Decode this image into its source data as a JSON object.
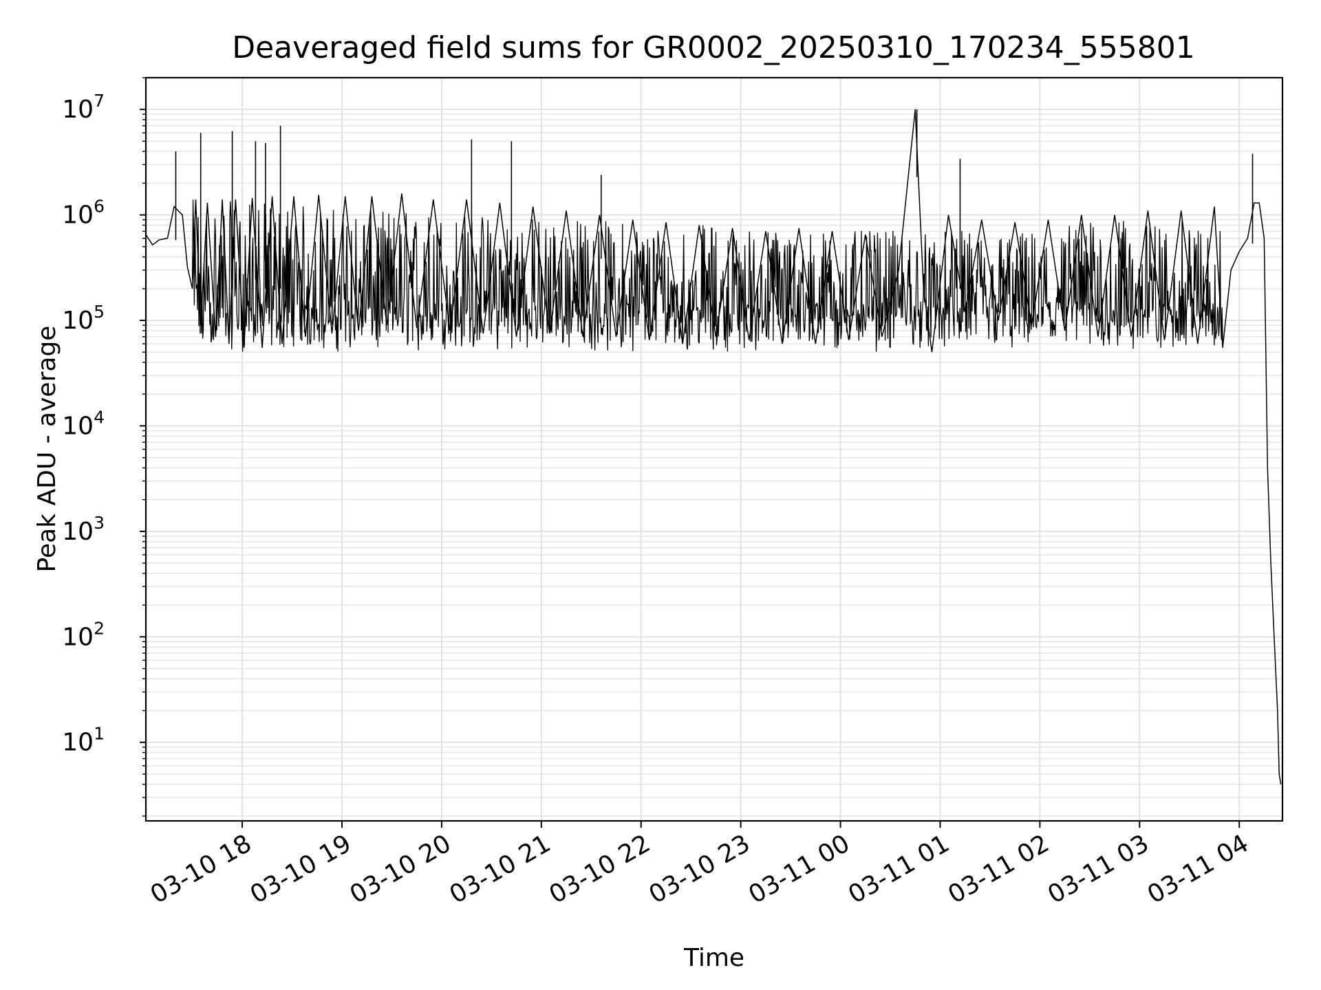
{
  "chart_data": {
    "type": "line",
    "title": "Deaveraged field sums for GR0002_20250310_170234_555801",
    "xlabel": "Time",
    "ylabel": "Peak ADU - average",
    "yscale": "log",
    "ylim": [
      1.8,
      20000000
    ],
    "xlim": [
      "2025-03-10 17:02",
      "2025-03-11 04:26"
    ],
    "grid": true,
    "x_ticks": [
      "03-10 18",
      "03-10 19",
      "03-10 20",
      "03-10 21",
      "03-10 22",
      "03-10 23",
      "03-11 00",
      "03-11 01",
      "03-11 02",
      "03-11 03",
      "03-11 04"
    ],
    "y_ticks": [
      {
        "base": "10",
        "exp": "1",
        "value": 10
      },
      {
        "base": "10",
        "exp": "2",
        "value": 100
      },
      {
        "base": "10",
        "exp": "3",
        "value": 1000
      },
      {
        "base": "10",
        "exp": "4",
        "value": 10000
      },
      {
        "base": "10",
        "exp": "5",
        "value": 100000
      },
      {
        "base": "10",
        "exp": "6",
        "value": 1000000
      },
      {
        "base": "10",
        "exp": "7",
        "value": 10000000
      }
    ],
    "series": [
      {
        "color": "#000000",
        "x": [
          "2025-03-10 17:02",
          "2025-03-10 17:06",
          "2025-03-10 17:10",
          "2025-03-10 17:15",
          "2025-03-10 17:19",
          "2025-03-10 17:24",
          "2025-03-10 17:27",
          "2025-03-10 17:30",
          "2025-03-10 17:32",
          "2025-03-10 17:35",
          "2025-03-10 17:39",
          "2025-03-10 17:44",
          "2025-03-10 17:48",
          "2025-03-10 17:52",
          "2025-03-10 17:56",
          "2025-03-10 18:01",
          "2025-03-10 18:06",
          "2025-03-10 18:12",
          "2025-03-10 18:18",
          "2025-03-10 18:24",
          "2025-03-10 18:31",
          "2025-03-10 18:38",
          "2025-03-10 18:46",
          "2025-03-10 18:54",
          "2025-03-10 19:02",
          "2025-03-10 19:10",
          "2025-03-10 19:18",
          "2025-03-10 19:27",
          "2025-03-10 19:36",
          "2025-03-10 19:45",
          "2025-03-10 19:55",
          "2025-03-10 20:05",
          "2025-03-10 20:15",
          "2025-03-10 20:25",
          "2025-03-10 20:35",
          "2025-03-10 20:45",
          "2025-03-10 20:55",
          "2025-03-10 21:05",
          "2025-03-10 21:15",
          "2025-03-10 21:25",
          "2025-03-10 21:35",
          "2025-03-10 21:45",
          "2025-03-10 21:55",
          "2025-03-10 22:05",
          "2025-03-10 22:15",
          "2025-03-10 22:25",
          "2025-03-10 22:35",
          "2025-03-10 22:45",
          "2025-03-10 22:55",
          "2025-03-10 23:05",
          "2025-03-10 23:15",
          "2025-03-10 23:25",
          "2025-03-10 23:35",
          "2025-03-10 23:45",
          "2025-03-10 23:55",
          "2025-03-11 00:05",
          "2025-03-11 00:15",
          "2025-03-11 00:25",
          "2025-03-11 00:35",
          "2025-03-11 00:45",
          "2025-03-11 00:50",
          "2025-03-11 00:55",
          "2025-03-11 01:05",
          "2025-03-11 01:15",
          "2025-03-11 01:25",
          "2025-03-11 01:35",
          "2025-03-11 01:45",
          "2025-03-11 01:55",
          "2025-03-11 02:05",
          "2025-03-11 02:15",
          "2025-03-11 02:25",
          "2025-03-11 02:35",
          "2025-03-11 02:45",
          "2025-03-11 02:55",
          "2025-03-11 03:05",
          "2025-03-11 03:15",
          "2025-03-11 03:25",
          "2025-03-11 03:35",
          "2025-03-11 03:45",
          "2025-03-11 03:50",
          "2025-03-11 03:55",
          "2025-03-11 04:00",
          "2025-03-11 04:05",
          "2025-03-11 04:09",
          "2025-03-11 04:12",
          "2025-03-11 04:15",
          "2025-03-11 04:17",
          "2025-03-11 04:19",
          "2025-03-11 04:21",
          "2025-03-11 04:23",
          "2025-03-11 04:24",
          "2025-03-11 04:25"
        ],
        "y": [
          650000,
          520000,
          580000,
          600000,
          1200000,
          1000000,
          320000,
          200000,
          1400000,
          90000,
          1300000,
          70000,
          1400000,
          60000,
          1400000,
          55000,
          1450000,
          55000,
          1500000,
          60000,
          1500000,
          70000,
          1550000,
          75000,
          1500000,
          80000,
          1500000,
          90000,
          1600000,
          85000,
          1400000,
          80000,
          1400000,
          75000,
          1300000,
          70000,
          1200000,
          75000,
          1100000,
          70000,
          1000000,
          70000,
          900000,
          65000,
          850000,
          60000,
          800000,
          70000,
          750000,
          65000,
          700000,
          60000,
          750000,
          60000,
          700000,
          65000,
          650000,
          70000,
          300000,
          10000000,
          200000,
          50000,
          1000000,
          120000,
          900000,
          100000,
          850000,
          90000,
          900000,
          80000,
          1000000,
          70000,
          1000000,
          70000,
          1100000,
          65000,
          1100000,
          60000,
          1200000,
          55000,
          300000,
          450000,
          600000,
          1300000,
          1300000,
          600000,
          4000,
          500,
          100,
          20,
          5,
          4
        ]
      }
    ],
    "spikes": [
      {
        "x": "2025-03-10 17:20",
        "y": 4000000
      },
      {
        "x": "2025-03-10 17:35",
        "y": 6000000
      },
      {
        "x": "2025-03-10 17:54",
        "y": 6200000
      },
      {
        "x": "2025-03-10 18:08",
        "y": 5000000
      },
      {
        "x": "2025-03-10 18:14",
        "y": 4800000
      },
      {
        "x": "2025-03-10 18:23",
        "y": 7000000
      },
      {
        "x": "2025-03-10 20:18",
        "y": 5200000
      },
      {
        "x": "2025-03-10 20:42",
        "y": 5000000
      },
      {
        "x": "2025-03-10 21:36",
        "y": 2400000
      },
      {
        "x": "2025-03-11 00:46",
        "y": 10000000
      },
      {
        "x": "2025-03-11 01:12",
        "y": 3400000
      },
      {
        "x": "2025-03-11 04:08",
        "y": 3800000
      }
    ]
  }
}
